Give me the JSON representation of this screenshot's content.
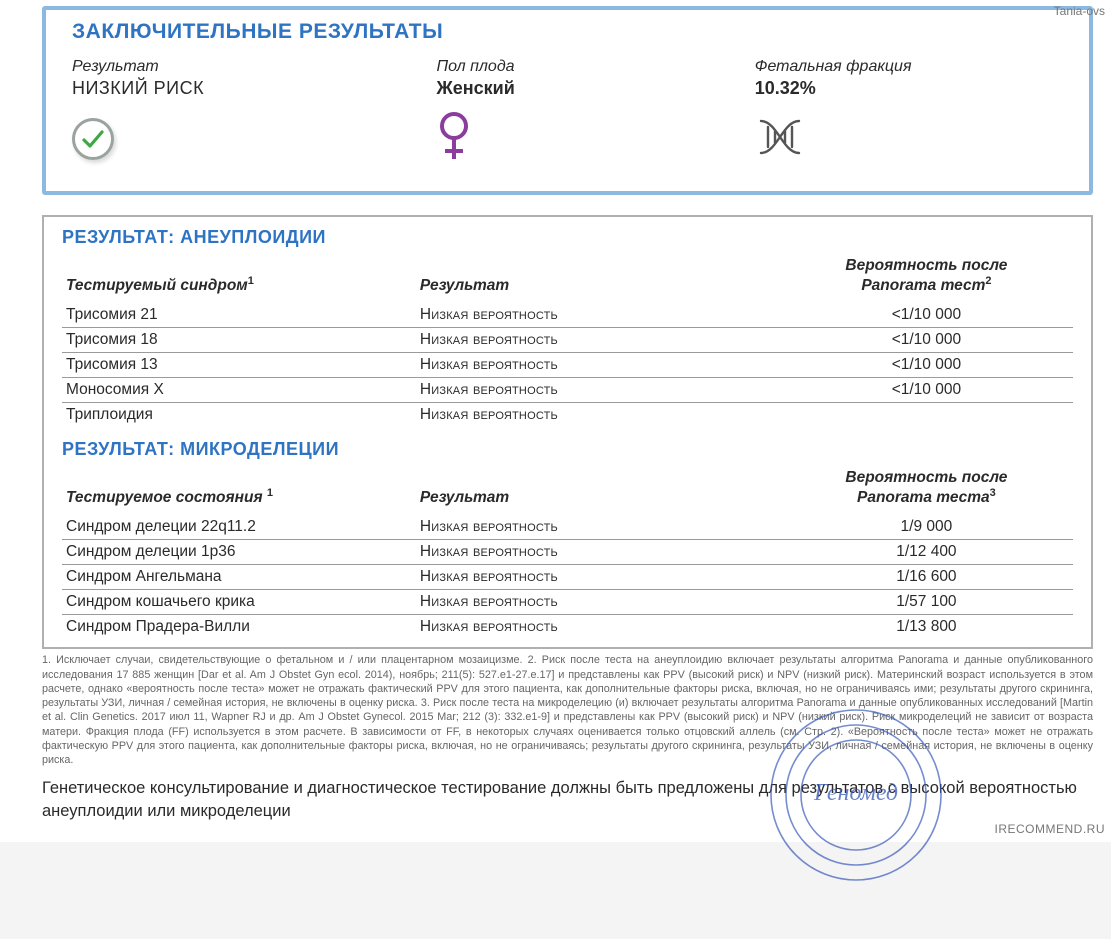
{
  "watermarks": {
    "top": "Tania-ovs",
    "bottom": "IRECOMMEND.RU"
  },
  "colors": {
    "accent": "#2e74c3",
    "border_box": "#8cb9e2",
    "results_border": "#b0b0b0",
    "check_stroke": "#3fa845",
    "female_stroke": "#8b3d9e",
    "dna_stroke": "#555555",
    "stamp": "#3556b9"
  },
  "conclusion": {
    "title": "ЗАКЛЮЧИТЕЛЬНЫЕ РЕЗУЛЬТАТЫ",
    "result_label": "Результат",
    "result_value": "НИЗКИЙ РИСК",
    "sex_label": "Пол плода",
    "sex_value": "Женский",
    "ff_label": "Фетальная фракция",
    "ff_value": "10.32%"
  },
  "aneuploidy": {
    "title": "РЕЗУЛЬТАТ: АНЕУПЛОИДИИ",
    "head_syndrome": "Тестируемый синдром",
    "head_syndrome_sup": "1",
    "head_result": "Результат",
    "head_prob_l1": "Вероятность после",
    "head_prob_l2": "Panorama тест",
    "head_prob_sup": "2",
    "rows": [
      {
        "s": "Трисомия 21",
        "r": "Низкая вероятность",
        "p": "<1/10 000"
      },
      {
        "s": "Трисомия 18",
        "r": "Низкая вероятность",
        "p": "<1/10 000"
      },
      {
        "s": "Трисомия 13",
        "r": "Низкая вероятность",
        "p": "<1/10 000"
      },
      {
        "s": "Моносомия X",
        "r": "Низкая вероятность",
        "p": "<1/10 000"
      },
      {
        "s": "Триплоидия",
        "r": "Низкая вероятность",
        "p": ""
      }
    ]
  },
  "microdel": {
    "title": "РЕЗУЛЬТАТ: МИКРОДЕЛЕЦИИ",
    "head_state": "Тестируемое состояния",
    "head_state_sup": "1",
    "head_result": "Результат",
    "head_prob_l1": "Вероятность после",
    "head_prob_l2": "Panorama теста",
    "head_prob_sup": "3",
    "rows": [
      {
        "s": "Синдром делеции 22q11.2",
        "r": "Низкая вероятность",
        "p": "1/9 000"
      },
      {
        "s": "Синдром делеции 1p36",
        "r": "Низкая вероятность",
        "p": "1/12 400"
      },
      {
        "s": "Синдром Ангельмана",
        "r": "Низкая вероятность",
        "p": "1/16 600"
      },
      {
        "s": "Синдром кошачьего крика",
        "r": "Низкая вероятность",
        "p": "1/57 100"
      },
      {
        "s": "Синдром Прадера-Вилли",
        "r": "Низкая вероятность",
        "p": "1/13 800"
      }
    ]
  },
  "fineprint": "1. Исключает случаи, свидетельствующие о фетальном и / или плацентарном мозаицизме. 2. Риск после теста на анеуплоидию включает результаты алгоритма Panorama и данные опубликованного исследования 17 885 женщин [Dar et al. Am J Obstet Gyn ecol. 2014), ноябрь; 211(5): 527.e1-27.e.17] и представлены как PPV (высокий риск) и NPV (низкий риск). Материнский возраст используется в этом расчете, однако «вероятность после теста» может не отражать фактический PPV для этого пациента, как дополнительные факторы риска, включая, но не ограничиваясь ими; результаты другого скрининга, результаты УЗИ, личная / семейная история, не включены в оценку риска. 3. Риск после теста на микроделецию (и) включает результаты алгоритма Panorama и данные опубликованных исследований [Martin et al. Clin Genetics. 2017 июл 11, Wapner RJ и др. Am J Obstet Gynecol. 2015 Mar; 212 (3): 332.e1-9] и представлены как PPV (высокий риск) и NPV (низкий риск). Риск микроделеций не зависит от возраста матери. Фракция плода (FF) используется в этом расчете. В зависимости от FF, в некоторых случаях оценивается только отцовский аллель (см. Стр. 2). «Вероятность после теста» может не отражать фактическую PPV для этого пациента, как дополнительные факторы риска, включая, но не ограничиваясь; результаты другого скрининга, результаты УЗИ, личная / семейная история, не включены в оценку риска.",
  "closing": "Генетическое консультирование и диагностическое тестирование должны быть предложены для результатов с высокой вероятностью анеуплоидии или микроделеции",
  "stamp_text": "Геномед"
}
